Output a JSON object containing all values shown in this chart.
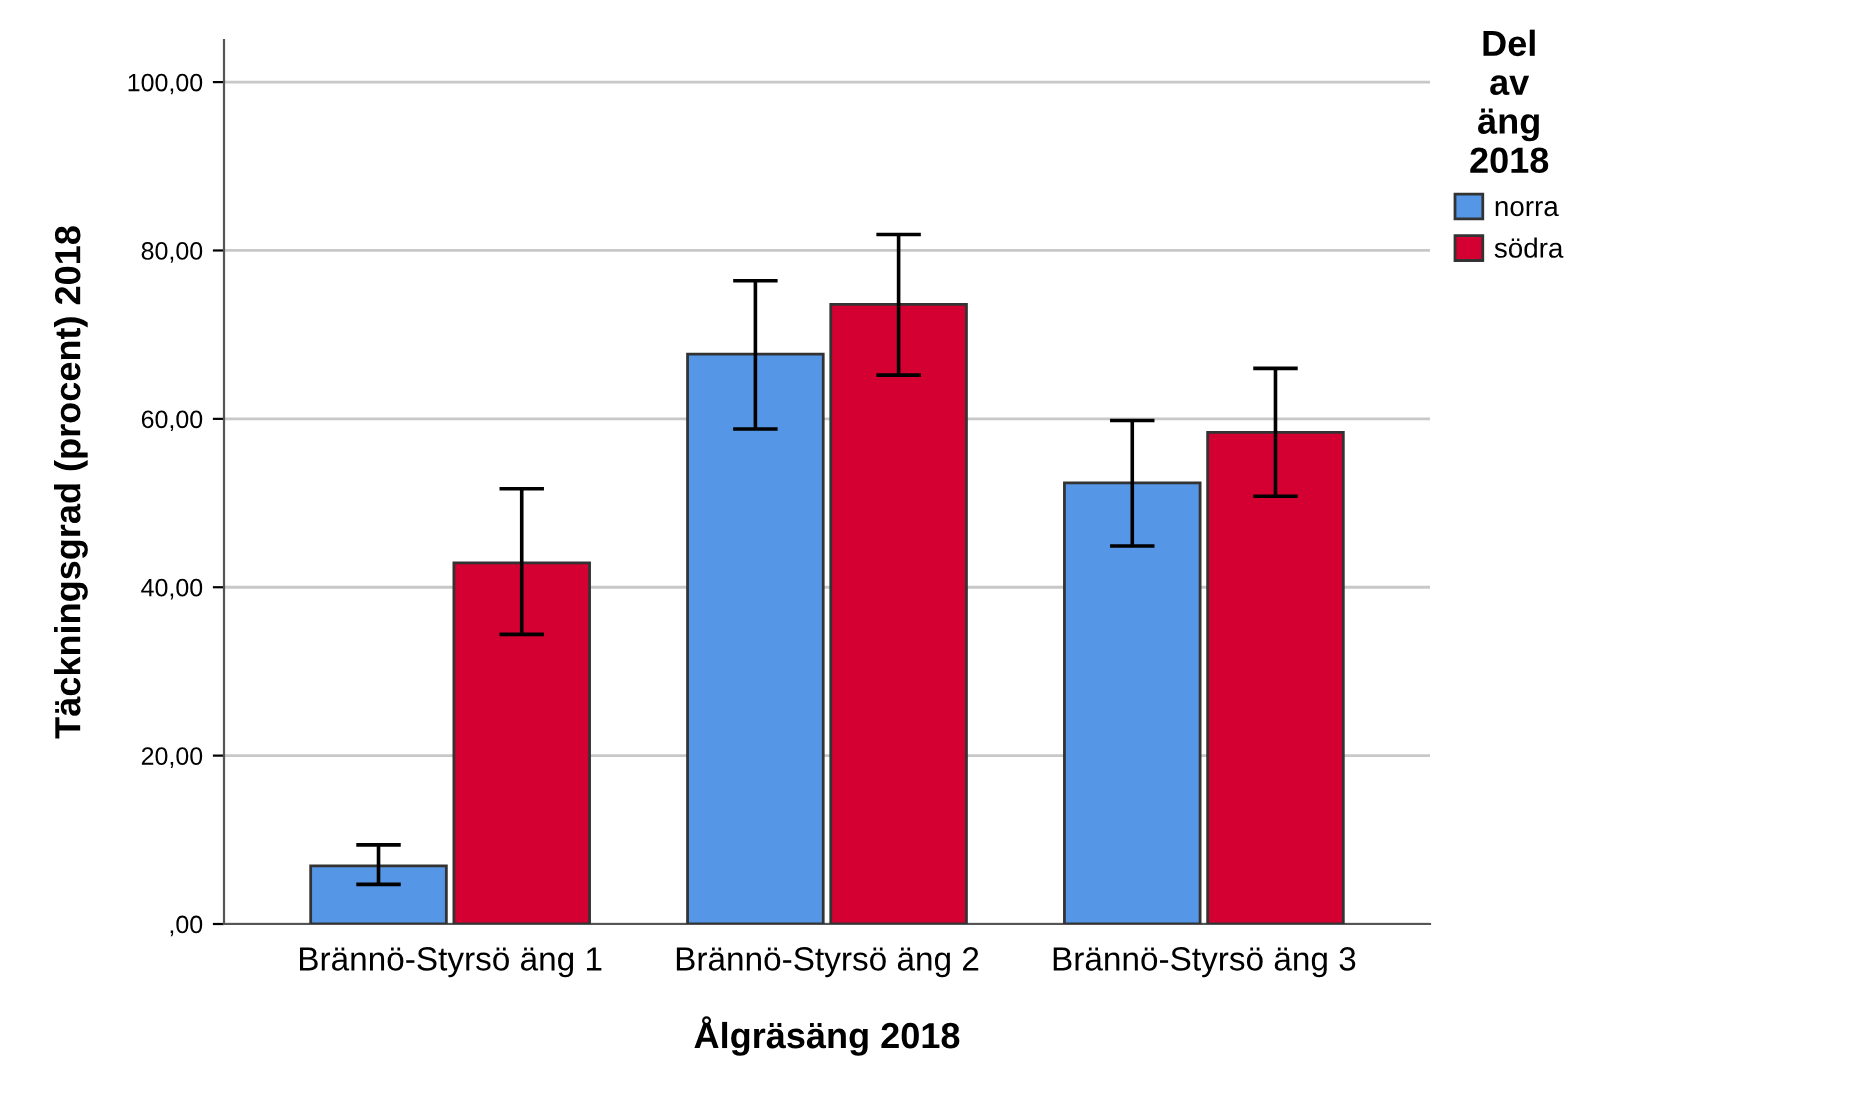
{
  "chart_data": {
    "type": "bar",
    "xlabel": "Ålgräsäng 2018",
    "ylabel": "Täckningsgrad (procent) 2018",
    "legend_title": "Del\nav\näng\n2018",
    "categories": [
      "Brännö-Styrsö äng 1",
      "Brännö-Styrsö äng 2",
      "Brännö-Styrsö äng 3"
    ],
    "series": [
      {
        "name": "norra",
        "color": "#5596e6",
        "values": [
          6.9,
          67.7,
          52.4
        ],
        "errors": [
          [
            4.7,
            9.4
          ],
          [
            58.8,
            76.4
          ],
          [
            44.9,
            59.8
          ]
        ]
      },
      {
        "name": "södra",
        "color": "#d40032",
        "values": [
          42.9,
          73.6,
          58.4
        ],
        "errors": [
          [
            34.4,
            51.7
          ],
          [
            65.2,
            81.9
          ],
          [
            50.8,
            66.0
          ]
        ]
      }
    ],
    "ylim": [
      0,
      105
    ],
    "yticks": [
      {
        "value": 0,
        "label": ",00"
      },
      {
        "value": 20,
        "label": "20,00"
      },
      {
        "value": 40,
        "label": "40,00"
      },
      {
        "value": 60,
        "label": "60,00"
      },
      {
        "value": 80,
        "label": "80,00"
      },
      {
        "value": 100,
        "label": "100,00"
      }
    ],
    "grid": "y",
    "legend": "top right"
  }
}
